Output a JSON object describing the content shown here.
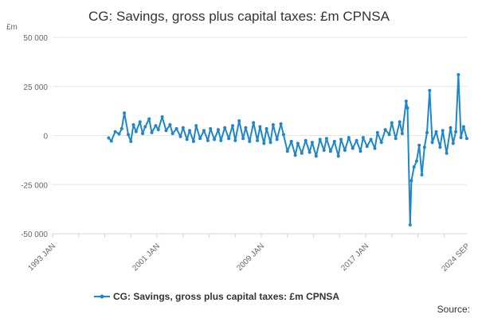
{
  "chart_data": {
    "type": "line",
    "title": "CG: Savings, gross plus capital taxes: £m CPNSA",
    "y_unit_label": "£m",
    "ylim": [
      -50000,
      50000
    ],
    "yticks": [
      {
        "value": 50000,
        "label": "50 000"
      },
      {
        "value": 25000,
        "label": "25 000"
      },
      {
        "value": 0,
        "label": "0"
      },
      {
        "value": -25000,
        "label": "-25 000"
      },
      {
        "value": -50000,
        "label": "-50 000"
      }
    ],
    "xlim": [
      1993.0,
      2024.75
    ],
    "xticks": [
      {
        "value": 1993.0,
        "label": "1993 JAN"
      },
      {
        "value": 2001.0,
        "label": "2001 JAN"
      },
      {
        "value": 2009.0,
        "label": "2009 JAN"
      },
      {
        "value": 2017.0,
        "label": "2017 JAN"
      },
      {
        "value": 2024.75,
        "label": "2024 SEP"
      }
    ],
    "grid": "horizontal",
    "legend_position": "bottom",
    "series": [
      {
        "name": "CG: Savings, gross plus capital taxes: £m CPNSA",
        "color": "#1f86c8",
        "points": [
          [
            1997.3,
            -1200
          ],
          [
            1997.5,
            -2800
          ],
          [
            1997.8,
            2000
          ],
          [
            1998.1,
            800
          ],
          [
            1998.3,
            3500
          ],
          [
            1998.5,
            11500
          ],
          [
            1998.8,
            500
          ],
          [
            1999.0,
            -3000
          ],
          [
            1999.2,
            5500
          ],
          [
            1999.4,
            2000
          ],
          [
            1999.7,
            7000
          ],
          [
            1999.9,
            1000
          ],
          [
            2000.1,
            4500
          ],
          [
            2000.4,
            8500
          ],
          [
            2000.6,
            1500
          ],
          [
            2000.9,
            5000
          ],
          [
            2001.1,
            3000
          ],
          [
            2001.4,
            9500
          ],
          [
            2001.7,
            2500
          ],
          [
            2002.0,
            5500
          ],
          [
            2002.2,
            1000
          ],
          [
            2002.5,
            3500
          ],
          [
            2002.8,
            -500
          ],
          [
            2003.0,
            4000
          ],
          [
            2003.3,
            -2000
          ],
          [
            2003.5,
            2500
          ],
          [
            2003.8,
            -3000
          ],
          [
            2004.0,
            5000
          ],
          [
            2004.3,
            -1500
          ],
          [
            2004.6,
            2500
          ],
          [
            2004.9,
            -2500
          ],
          [
            2005.1,
            3500
          ],
          [
            2005.4,
            -2000
          ],
          [
            2005.7,
            3000
          ],
          [
            2005.9,
            -2500
          ],
          [
            2006.2,
            4000
          ],
          [
            2006.5,
            -1500
          ],
          [
            2006.8,
            5000
          ],
          [
            2007.0,
            -2500
          ],
          [
            2007.3,
            7500
          ],
          [
            2007.6,
            -1500
          ],
          [
            2007.8,
            4000
          ],
          [
            2008.1,
            -3000
          ],
          [
            2008.4,
            6500
          ],
          [
            2008.7,
            -2500
          ],
          [
            2008.9,
            4500
          ],
          [
            2009.2,
            -4000
          ],
          [
            2009.4,
            3500
          ],
          [
            2009.7,
            -3500
          ],
          [
            2009.9,
            5500
          ],
          [
            2010.2,
            -2000
          ],
          [
            2010.5,
            6000
          ],
          [
            2010.7,
            500
          ],
          [
            2011.0,
            -8000
          ],
          [
            2011.3,
            -3000
          ],
          [
            2011.6,
            -10000
          ],
          [
            2011.8,
            -4000
          ],
          [
            2012.1,
            -9000
          ],
          [
            2012.4,
            -2500
          ],
          [
            2012.7,
            -8500
          ],
          [
            2012.9,
            -3500
          ],
          [
            2013.2,
            -10500
          ],
          [
            2013.5,
            -2000
          ],
          [
            2013.8,
            -7500
          ],
          [
            2014.0,
            -1500
          ],
          [
            2014.3,
            -8000
          ],
          [
            2014.6,
            -3000
          ],
          [
            2014.9,
            -10500
          ],
          [
            2015.1,
            -2000
          ],
          [
            2015.4,
            -7500
          ],
          [
            2015.7,
            -1000
          ],
          [
            2016.0,
            -6500
          ],
          [
            2016.3,
            -2500
          ],
          [
            2016.6,
            -8000
          ],
          [
            2016.8,
            -1000
          ],
          [
            2017.1,
            -5500
          ],
          [
            2017.4,
            -2000
          ],
          [
            2017.7,
            -6500
          ],
          [
            2017.9,
            1500
          ],
          [
            2018.2,
            -3500
          ],
          [
            2018.5,
            3000
          ],
          [
            2018.8,
            500
          ],
          [
            2019.0,
            6500
          ],
          [
            2019.3,
            -1500
          ],
          [
            2019.6,
            7000
          ],
          [
            2019.8,
            1000
          ],
          [
            2020.1,
            17500
          ],
          [
            2020.2,
            14000
          ],
          [
            2020.4,
            -45500
          ],
          [
            2020.5,
            -23000
          ],
          [
            2020.7,
            -16000
          ],
          [
            2020.9,
            -13000
          ],
          [
            2021.1,
            -5000
          ],
          [
            2021.3,
            -20000
          ],
          [
            2021.5,
            -6000
          ],
          [
            2021.7,
            1500
          ],
          [
            2021.9,
            23000
          ],
          [
            2022.1,
            -3500
          ],
          [
            2022.4,
            2000
          ],
          [
            2022.7,
            -6000
          ],
          [
            2022.9,
            2500
          ],
          [
            2023.2,
            -9000
          ],
          [
            2023.5,
            4000
          ],
          [
            2023.7,
            -4000
          ],
          [
            2023.9,
            2000
          ],
          [
            2024.1,
            31000
          ],
          [
            2024.3,
            -1000
          ],
          [
            2024.5,
            4500
          ],
          [
            2024.75,
            -1500
          ]
        ]
      }
    ],
    "source_label": "Source:"
  }
}
